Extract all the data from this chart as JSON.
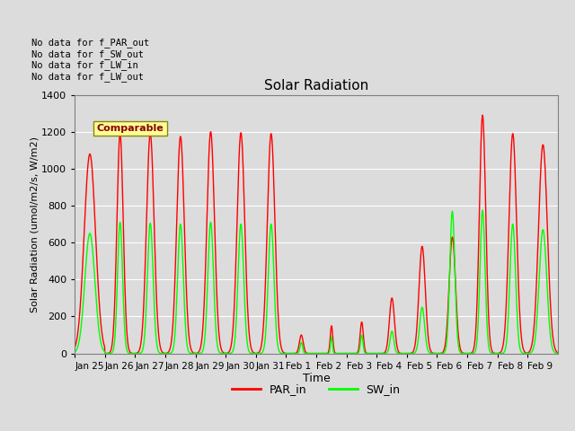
{
  "title": "Solar Radiation",
  "xlabel": "Time",
  "ylabel": "Solar Radiation (umol/m2/s, W/m2)",
  "ylim": [
    0,
    1400
  ],
  "yticks": [
    0,
    200,
    400,
    600,
    800,
    1000,
    1200,
    1400
  ],
  "background_color": "#dcdcdc",
  "annotations": [
    "No data for f_PAR_out",
    "No data for f_SW_out",
    "No data for f_LW_in",
    "No data for f_LW_out"
  ],
  "legend_entries": [
    "PAR_in",
    "SW_in"
  ],
  "line_width": 1.0,
  "x_tick_labels": [
    "Jan 25",
    "Jan 26",
    "Jan 27",
    "Jan 28",
    "Jan 29",
    "Jan 30",
    "Jan 31",
    "Feb 1",
    "Feb 2",
    "Feb 3",
    "Feb 4",
    "Feb 5",
    "Feb 6",
    "Feb 7",
    "Feb 8",
    "Feb 9"
  ],
  "days": 16,
  "points_per_day": 96,
  "PAR_in_peaks": [
    1080,
    1190,
    1190,
    1175,
    1200,
    1195,
    1190,
    100,
    150,
    170,
    300,
    580,
    630,
    1290,
    1190,
    1130
  ],
  "SW_in_peaks": [
    650,
    710,
    705,
    700,
    710,
    700,
    700,
    60,
    90,
    100,
    120,
    250,
    770,
    775,
    700,
    670
  ],
  "PAR_in_widths": [
    18,
    10,
    12,
    12,
    12,
    12,
    12,
    6,
    4,
    5,
    8,
    10,
    10,
    10,
    12,
    14
  ],
  "SW_in_widths": [
    16,
    8,
    9,
    9,
    9,
    9,
    9,
    4,
    3,
    4,
    6,
    8,
    8,
    8,
    9,
    12
  ],
  "PAR_center": [
    48,
    48,
    48,
    48,
    48,
    48,
    48,
    48,
    48,
    48,
    48,
    48,
    48,
    48,
    48,
    48
  ],
  "SW_center": [
    48,
    48,
    48,
    48,
    48,
    48,
    48,
    48,
    48,
    48,
    48,
    48,
    48,
    48,
    48,
    48
  ]
}
